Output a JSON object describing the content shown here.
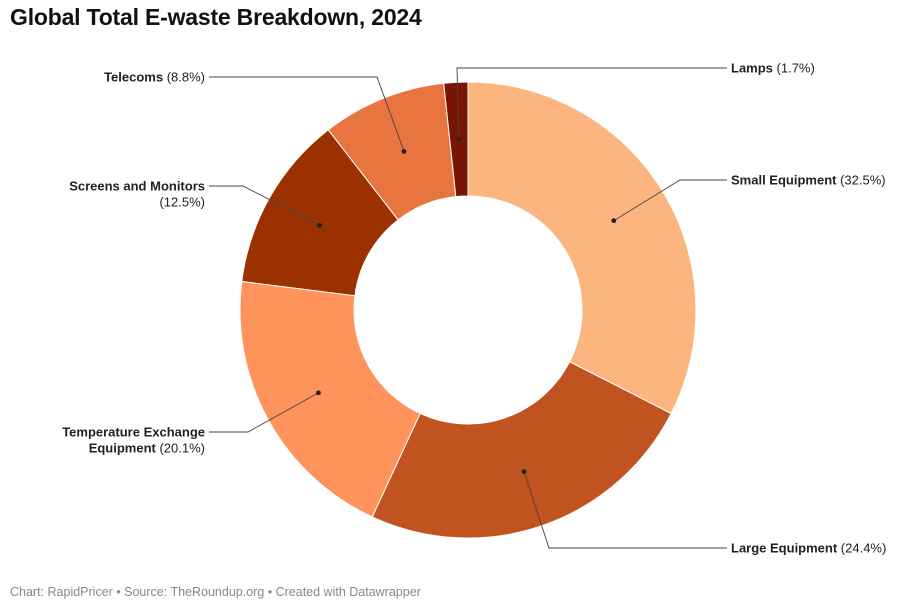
{
  "title": "Global Total E-waste Breakdown, 2024",
  "footer": "Chart: RapidPricer • Source: TheRoundup.org • Created with Datawrapper",
  "chart_data": {
    "type": "pie",
    "variant": "donut",
    "title": "Global Total E-waste Breakdown, 2024",
    "unit": "%",
    "slices": [
      {
        "name": "Small Equipment",
        "value": 32.5,
        "label_lines": [
          "Small Equipment (32.5%)"
        ],
        "color": "#fdb57f"
      },
      {
        "name": "Large Equipment",
        "value": 24.4,
        "label_lines": [
          "Large Equipment (24.4%)"
        ],
        "color": "#c15321"
      },
      {
        "name": "Temperature Exchange Equipment",
        "value": 20.1,
        "label_lines": [
          "Temperature Exchange",
          "Equipment (20.1%)"
        ],
        "color": "#fe935b"
      },
      {
        "name": "Screens and Monitors",
        "value": 12.5,
        "label_lines": [
          "Screens and Monitors",
          "(12.5%)"
        ],
        "color": "#9c3100"
      },
      {
        "name": "Telecoms",
        "value": 8.8,
        "label_lines": [
          "Telecoms (8.8%)"
        ],
        "color": "#e87540"
      },
      {
        "name": "Lamps",
        "value": 1.7,
        "label_lines": [
          "Lamps (1.7%)"
        ],
        "color": "#7a1405"
      }
    ]
  }
}
